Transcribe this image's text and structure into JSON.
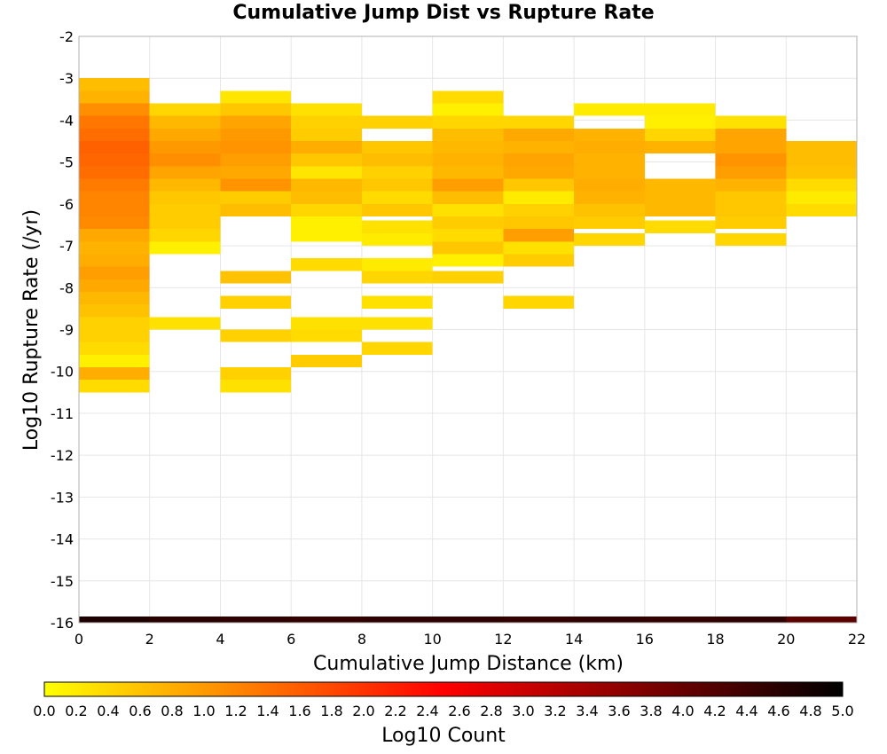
{
  "chart_data": {
    "type": "heatmap",
    "title": "Cumulative Jump Dist vs Rupture Rate",
    "xlabel": "Cumulative Jump Distance (km)",
    "ylabel": "Log10 Rupture Rate (/yr)",
    "xlim": [
      0,
      22
    ],
    "ylim": [
      -16,
      -2
    ],
    "x_ticks": [
      "0",
      "2",
      "4",
      "6",
      "8",
      "10",
      "12",
      "14",
      "16",
      "18",
      "20",
      "22"
    ],
    "y_ticks": [
      "-2",
      "-3",
      "-4",
      "-5",
      "-6",
      "-7",
      "-8",
      "-9",
      "-10",
      "-11",
      "-12",
      "-13",
      "-14",
      "-15",
      "-16"
    ],
    "grid": true,
    "bin_width_x": 2,
    "bin_height_y": 0.3,
    "colorbar": {
      "label": "Log10 Count",
      "min": 0,
      "max": 5,
      "ticks": [
        "0.0",
        "0.2",
        "0.4",
        "0.6",
        "0.8",
        "1.0",
        "1.2",
        "1.4",
        "1.6",
        "1.8",
        "2.0",
        "2.2",
        "2.4",
        "2.6",
        "2.8",
        "3.0",
        "3.2",
        "3.4",
        "3.6",
        "3.8",
        "4.0",
        "4.2",
        "4.4",
        "4.6",
        "4.8",
        "5.0"
      ],
      "colors": [
        "#ffff00",
        "#ff8000",
        "#ff0000",
        "#800000",
        "#000000"
      ]
    },
    "cells": [
      {
        "x": 0,
        "y": -3.15,
        "v": 0.65
      },
      {
        "x": 0,
        "y": -3.45,
        "v": 0.75
      },
      {
        "x": 0,
        "y": -3.75,
        "v": 1.1
      },
      {
        "x": 0,
        "y": -4.05,
        "v": 1.35
      },
      {
        "x": 0,
        "y": -4.35,
        "v": 1.45
      },
      {
        "x": 0,
        "y": -4.65,
        "v": 1.55
      },
      {
        "x": 0,
        "y": -4.95,
        "v": 1.5
      },
      {
        "x": 0,
        "y": -5.25,
        "v": 1.45
      },
      {
        "x": 0,
        "y": -5.55,
        "v": 1.3
      },
      {
        "x": 0,
        "y": -5.85,
        "v": 1.2
      },
      {
        "x": 0,
        "y": -6.15,
        "v": 1.2
      },
      {
        "x": 0,
        "y": -6.45,
        "v": 1.15
      },
      {
        "x": 0,
        "y": -6.75,
        "v": 0.85
      },
      {
        "x": 0,
        "y": -7.05,
        "v": 0.75
      },
      {
        "x": 0,
        "y": -7.35,
        "v": 0.8
      },
      {
        "x": 0,
        "y": -7.65,
        "v": 0.95
      },
      {
        "x": 0,
        "y": -7.95,
        "v": 0.85
      },
      {
        "x": 0,
        "y": -8.25,
        "v": 0.7
      },
      {
        "x": 0,
        "y": -8.55,
        "v": 0.6
      },
      {
        "x": 0,
        "y": -8.85,
        "v": 0.45
      },
      {
        "x": 0,
        "y": -9.15,
        "v": 0.45
      },
      {
        "x": 0,
        "y": -9.45,
        "v": 0.35
      },
      {
        "x": 0,
        "y": -9.75,
        "v": 0.15
      },
      {
        "x": 0,
        "y": -10.05,
        "v": 0.8
      },
      {
        "x": 0,
        "y": -10.35,
        "v": 0.35
      },
      {
        "x": 2,
        "y": -3.75,
        "v": 0.4
      },
      {
        "x": 2,
        "y": -4.05,
        "v": 0.7
      },
      {
        "x": 2,
        "y": -4.35,
        "v": 0.85
      },
      {
        "x": 2,
        "y": -4.65,
        "v": 1.0
      },
      {
        "x": 2,
        "y": -4.95,
        "v": 1.1
      },
      {
        "x": 2,
        "y": -5.25,
        "v": 0.9
      },
      {
        "x": 2,
        "y": -5.55,
        "v": 0.7
      },
      {
        "x": 2,
        "y": -5.85,
        "v": 0.55
      },
      {
        "x": 2,
        "y": -6.15,
        "v": 0.5
      },
      {
        "x": 2,
        "y": -6.45,
        "v": 0.5
      },
      {
        "x": 2,
        "y": -6.75,
        "v": 0.4
      },
      {
        "x": 2,
        "y": -7.05,
        "v": 0.15
      },
      {
        "x": 2,
        "y": -8.85,
        "v": 0.3
      },
      {
        "x": 4,
        "y": -3.45,
        "v": 0.25
      },
      {
        "x": 4,
        "y": -3.75,
        "v": 0.55
      },
      {
        "x": 4,
        "y": -4.05,
        "v": 0.9
      },
      {
        "x": 4,
        "y": -4.35,
        "v": 1.0
      },
      {
        "x": 4,
        "y": -4.65,
        "v": 1.05
      },
      {
        "x": 4,
        "y": -4.95,
        "v": 0.95
      },
      {
        "x": 4,
        "y": -5.25,
        "v": 0.85
      },
      {
        "x": 4,
        "y": -5.55,
        "v": 1.05
      },
      {
        "x": 4,
        "y": -5.85,
        "v": 0.5
      },
      {
        "x": 4,
        "y": -6.15,
        "v": 0.65
      },
      {
        "x": 4,
        "y": -7.75,
        "v": 0.6
      },
      {
        "x": 4,
        "y": -8.35,
        "v": 0.45
      },
      {
        "x": 4,
        "y": -9.15,
        "v": 0.45
      },
      {
        "x": 4,
        "y": -10.05,
        "v": 0.45
      },
      {
        "x": 4,
        "y": -10.35,
        "v": 0.3
      },
      {
        "x": 6,
        "y": -3.75,
        "v": 0.3
      },
      {
        "x": 6,
        "y": -4.05,
        "v": 0.45
      },
      {
        "x": 6,
        "y": -4.35,
        "v": 0.5
      },
      {
        "x": 6,
        "y": -4.65,
        "v": 0.8
      },
      {
        "x": 6,
        "y": -4.95,
        "v": 0.55
      },
      {
        "x": 6,
        "y": -5.25,
        "v": 0.25
      },
      {
        "x": 6,
        "y": -5.55,
        "v": 0.7
      },
      {
        "x": 6,
        "y": -5.85,
        "v": 0.65
      },
      {
        "x": 6,
        "y": -6.15,
        "v": 0.4
      },
      {
        "x": 6,
        "y": -6.45,
        "v": 0.15
      },
      {
        "x": 6,
        "y": -6.75,
        "v": 0.15
      },
      {
        "x": 6,
        "y": -7.45,
        "v": 0.35
      },
      {
        "x": 6,
        "y": -8.85,
        "v": 0.3
      },
      {
        "x": 6,
        "y": -9.15,
        "v": 0.35
      },
      {
        "x": 6,
        "y": -9.75,
        "v": 0.5
      },
      {
        "x": 8,
        "y": -4.05,
        "v": 0.45
      },
      {
        "x": 8,
        "y": -4.65,
        "v": 0.55
      },
      {
        "x": 8,
        "y": -4.95,
        "v": 0.65
      },
      {
        "x": 8,
        "y": -5.25,
        "v": 0.45
      },
      {
        "x": 8,
        "y": -5.55,
        "v": 0.55
      },
      {
        "x": 8,
        "y": -5.85,
        "v": 0.35
      },
      {
        "x": 8,
        "y": -6.15,
        "v": 0.55
      },
      {
        "x": 8,
        "y": -6.55,
        "v": 0.3
      },
      {
        "x": 8,
        "y": -6.85,
        "v": 0.2
      },
      {
        "x": 8,
        "y": -7.45,
        "v": 0.2
      },
      {
        "x": 8,
        "y": -7.75,
        "v": 0.4
      },
      {
        "x": 8,
        "y": -8.35,
        "v": 0.3
      },
      {
        "x": 8,
        "y": -8.85,
        "v": 0.3
      },
      {
        "x": 8,
        "y": -9.45,
        "v": 0.4
      },
      {
        "x": 10,
        "y": -3.45,
        "v": 0.35
      },
      {
        "x": 10,
        "y": -3.75,
        "v": 0.15
      },
      {
        "x": 10,
        "y": -4.05,
        "v": 0.4
      },
      {
        "x": 10,
        "y": -4.35,
        "v": 0.65
      },
      {
        "x": 10,
        "y": -4.65,
        "v": 0.7
      },
      {
        "x": 10,
        "y": -4.95,
        "v": 0.75
      },
      {
        "x": 10,
        "y": -5.25,
        "v": 0.7
      },
      {
        "x": 10,
        "y": -5.55,
        "v": 0.95
      },
      {
        "x": 10,
        "y": -5.85,
        "v": 0.65
      },
      {
        "x": 10,
        "y": -6.15,
        "v": 0.3
      },
      {
        "x": 10,
        "y": -6.45,
        "v": 0.5
      },
      {
        "x": 10,
        "y": -6.75,
        "v": 0.35
      },
      {
        "x": 10,
        "y": -7.05,
        "v": 0.55
      },
      {
        "x": 10,
        "y": -7.35,
        "v": 0.15
      },
      {
        "x": 10,
        "y": -7.75,
        "v": 0.45
      },
      {
        "x": 12,
        "y": -4.05,
        "v": 0.4
      },
      {
        "x": 12,
        "y": -4.35,
        "v": 0.85
      },
      {
        "x": 12,
        "y": -4.65,
        "v": 0.75
      },
      {
        "x": 12,
        "y": -4.95,
        "v": 0.9
      },
      {
        "x": 12,
        "y": -5.25,
        "v": 0.85
      },
      {
        "x": 12,
        "y": -5.55,
        "v": 0.55
      },
      {
        "x": 12,
        "y": -5.85,
        "v": 0.2
      },
      {
        "x": 12,
        "y": -6.15,
        "v": 0.45
      },
      {
        "x": 12,
        "y": -6.45,
        "v": 0.55
      },
      {
        "x": 12,
        "y": -6.75,
        "v": 0.95
      },
      {
        "x": 12,
        "y": -7.05,
        "v": 0.3
      },
      {
        "x": 12,
        "y": -7.35,
        "v": 0.5
      },
      {
        "x": 12,
        "y": -8.35,
        "v": 0.4
      },
      {
        "x": 14,
        "y": -3.75,
        "v": 0.2
      },
      {
        "x": 14,
        "y": -4.35,
        "v": 0.75
      },
      {
        "x": 14,
        "y": -4.65,
        "v": 0.8
      },
      {
        "x": 14,
        "y": -4.95,
        "v": 0.75
      },
      {
        "x": 14,
        "y": -5.25,
        "v": 0.75
      },
      {
        "x": 14,
        "y": -5.55,
        "v": 0.8
      },
      {
        "x": 14,
        "y": -5.85,
        "v": 0.75
      },
      {
        "x": 14,
        "y": -6.15,
        "v": 0.6
      },
      {
        "x": 14,
        "y": -6.45,
        "v": 0.5
      },
      {
        "x": 14,
        "y": -6.85,
        "v": 0.4
      },
      {
        "x": 16,
        "y": -3.75,
        "v": 0.2
      },
      {
        "x": 16,
        "y": -4.05,
        "v": 0.15
      },
      {
        "x": 16,
        "y": -4.35,
        "v": 0.4
      },
      {
        "x": 16,
        "y": -4.65,
        "v": 0.75
      },
      {
        "x": 16,
        "y": -5.55,
        "v": 0.7
      },
      {
        "x": 16,
        "y": -5.85,
        "v": 0.7
      },
      {
        "x": 16,
        "y": -6.15,
        "v": 0.7
      },
      {
        "x": 16,
        "y": -6.55,
        "v": 0.35
      },
      {
        "x": 18,
        "y": -4.05,
        "v": 0.3
      },
      {
        "x": 18,
        "y": -4.35,
        "v": 0.9
      },
      {
        "x": 18,
        "y": -4.65,
        "v": 0.9
      },
      {
        "x": 18,
        "y": -4.95,
        "v": 1.05
      },
      {
        "x": 18,
        "y": -5.25,
        "v": 0.95
      },
      {
        "x": 18,
        "y": -5.55,
        "v": 0.75
      },
      {
        "x": 18,
        "y": -5.85,
        "v": 0.55
      },
      {
        "x": 18,
        "y": -6.15,
        "v": 0.55
      },
      {
        "x": 18,
        "y": -6.45,
        "v": 0.5
      },
      {
        "x": 18,
        "y": -6.85,
        "v": 0.4
      },
      {
        "x": 20,
        "y": -4.65,
        "v": 0.65
      },
      {
        "x": 20,
        "y": -4.95,
        "v": 0.65
      },
      {
        "x": 20,
        "y": -5.25,
        "v": 0.6
      },
      {
        "x": 20,
        "y": -5.55,
        "v": 0.35
      },
      {
        "x": 20,
        "y": -5.85,
        "v": 0.2
      },
      {
        "x": 20,
        "y": -6.15,
        "v": 0.35
      },
      {
        "x": 0,
        "y": -16,
        "v": 4.7
      },
      {
        "x": 2,
        "y": -16,
        "v": 4.6
      },
      {
        "x": 4,
        "y": -16,
        "v": 4.55
      },
      {
        "x": 6,
        "y": -16,
        "v": 4.5
      },
      {
        "x": 8,
        "y": -16,
        "v": 4.55
      },
      {
        "x": 10,
        "y": -16,
        "v": 4.55
      },
      {
        "x": 12,
        "y": -16,
        "v": 4.5
      },
      {
        "x": 14,
        "y": -16,
        "v": 4.55
      },
      {
        "x": 16,
        "y": -16,
        "v": 4.5
      },
      {
        "x": 18,
        "y": -16,
        "v": 4.55
      },
      {
        "x": 20,
        "y": -16,
        "v": 4.1
      }
    ]
  }
}
